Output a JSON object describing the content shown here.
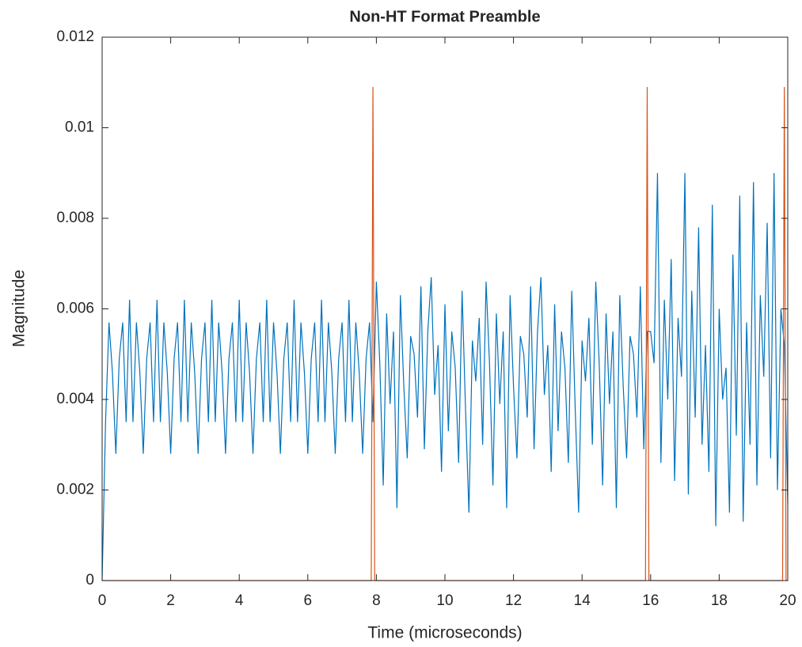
{
  "chart_data": {
    "type": "line",
    "title": "Non-HT Format Preamble",
    "x_label": "Time (microseconds)",
    "y_label": "Magnitude",
    "xlim": [
      0,
      20
    ],
    "ylim": [
      0,
      0.012
    ],
    "xticks": [
      0,
      2,
      4,
      6,
      8,
      10,
      12,
      14,
      16,
      18,
      20
    ],
    "yticks": [
      0,
      0.002,
      0.004,
      0.006,
      0.008,
      0.01,
      0.012
    ],
    "grid": false,
    "series": [
      {
        "color": "#0072BD",
        "x": [
          0,
          0.1,
          0.2,
          0.3,
          0.4,
          0.5,
          0.6,
          0.7,
          0.8,
          0.9,
          1,
          1.1,
          1.2,
          1.3,
          1.4,
          1.5,
          1.6,
          1.7,
          1.8,
          1.9,
          2,
          2.1,
          2.2,
          2.3,
          2.4,
          2.5,
          2.6,
          2.7,
          2.8,
          2.9,
          3,
          3.1,
          3.2,
          3.3,
          3.4,
          3.5,
          3.6,
          3.7,
          3.8,
          3.9,
          4,
          4.1,
          4.2,
          4.3,
          4.4,
          4.5,
          4.6,
          4.7,
          4.8,
          4.9,
          5,
          5.1,
          5.2,
          5.3,
          5.4,
          5.5,
          5.6,
          5.7,
          5.8,
          5.9,
          6,
          6.1,
          6.2,
          6.3,
          6.4,
          6.5,
          6.6,
          6.7,
          6.8,
          6.9,
          7,
          7.1,
          7.2,
          7.3,
          7.4,
          7.5,
          7.6,
          7.7,
          7.8,
          7.9,
          8,
          8.1,
          8.2,
          8.3,
          8.4,
          8.5,
          8.6,
          8.7,
          8.8,
          8.9,
          9,
          9.1,
          9.2,
          9.3,
          9.4,
          9.5,
          9.6,
          9.7,
          9.8,
          9.9,
          10,
          10.1,
          10.2,
          10.3,
          10.4,
          10.5,
          10.6,
          10.7,
          10.8,
          10.9,
          11,
          11.1,
          11.2,
          11.3,
          11.4,
          11.5,
          11.6,
          11.7,
          11.8,
          11.9,
          12,
          12.1,
          12.2,
          12.3,
          12.4,
          12.5,
          12.6,
          12.7,
          12.8,
          12.9,
          13,
          13.1,
          13.2,
          13.3,
          13.4,
          13.5,
          13.6,
          13.7,
          13.8,
          13.9,
          14,
          14.1,
          14.2,
          14.3,
          14.4,
          14.5,
          14.6,
          14.7,
          14.8,
          14.9,
          15,
          15.1,
          15.2,
          15.3,
          15.4,
          15.5,
          15.6,
          15.7,
          15.8,
          15.9,
          16,
          16.1,
          16.2,
          16.3,
          16.4,
          16.5,
          16.6,
          16.7,
          16.8,
          16.9,
          17,
          17.1,
          17.2,
          17.3,
          17.4,
          17.5,
          17.6,
          17.7,
          17.8,
          17.9,
          18,
          18.1,
          18.2,
          18.3,
          18.4,
          18.5,
          18.6,
          18.7,
          18.8,
          18.9,
          19,
          19.1,
          19.2,
          19.3,
          19.4,
          19.5,
          19.6,
          19.7,
          19.8,
          19.9,
          20
        ],
        "values": [
          0,
          0.0035,
          0.0057,
          0.0046,
          0.0028,
          0.0049,
          0.0057,
          0.0035,
          0.0062,
          0.0035,
          0.0057,
          0.0046,
          0.0028,
          0.0049,
          0.0057,
          0.0035,
          0.0062,
          0.0035,
          0.0057,
          0.0046,
          0.0028,
          0.0049,
          0.0057,
          0.0035,
          0.0062,
          0.0035,
          0.0057,
          0.0046,
          0.0028,
          0.0049,
          0.0057,
          0.0035,
          0.0062,
          0.0035,
          0.0057,
          0.0046,
          0.0028,
          0.0049,
          0.0057,
          0.0035,
          0.0062,
          0.0035,
          0.0057,
          0.0046,
          0.0028,
          0.0049,
          0.0057,
          0.0035,
          0.0062,
          0.0035,
          0.0057,
          0.0046,
          0.0028,
          0.0049,
          0.0057,
          0.0035,
          0.0062,
          0.0035,
          0.0057,
          0.0046,
          0.0028,
          0.0049,
          0.0057,
          0.0035,
          0.0062,
          0.0035,
          0.0057,
          0.0046,
          0.0028,
          0.0049,
          0.0057,
          0.0035,
          0.0062,
          0.0035,
          0.0057,
          0.0046,
          0.0028,
          0.0049,
          0.0057,
          0.0035,
          0.0066,
          0.0048,
          0.0021,
          0.0059,
          0.0039,
          0.0055,
          0.0016,
          0.0063,
          0.0043,
          0.0027,
          0.0054,
          0.005,
          0.0036,
          0.0065,
          0.0029,
          0.0055,
          0.0067,
          0.0041,
          0.0052,
          0.0024,
          0.0061,
          0.0033,
          0.0055,
          0.0047,
          0.0026,
          0.0064,
          0.0038,
          0.0015,
          0.0053,
          0.0044,
          0.0058,
          0.003,
          0.0066,
          0.0048,
          0.0021,
          0.0059,
          0.0039,
          0.0055,
          0.0016,
          0.0063,
          0.0043,
          0.0027,
          0.0054,
          0.005,
          0.0036,
          0.0065,
          0.0029,
          0.0055,
          0.0067,
          0.0041,
          0.0052,
          0.0024,
          0.0061,
          0.0033,
          0.0055,
          0.0047,
          0.0026,
          0.0064,
          0.0038,
          0.0015,
          0.0053,
          0.0044,
          0.0058,
          0.003,
          0.0066,
          0.0048,
          0.0021,
          0.0059,
          0.0039,
          0.0055,
          0.0016,
          0.0063,
          0.0043,
          0.0027,
          0.0054,
          0.005,
          0.0036,
          0.0065,
          0.0029,
          0.0055,
          0.0055,
          0.0048,
          0.009,
          0.0026,
          0.0062,
          0.004,
          0.0071,
          0.0022,
          0.0058,
          0.0045,
          0.009,
          0.0019,
          0.0064,
          0.0036,
          0.0078,
          0.003,
          0.0052,
          0.0024,
          0.0083,
          0.0012,
          0.006,
          0.004,
          0.0047,
          0.0015,
          0.0072,
          0.0032,
          0.0085,
          0.0013,
          0.0057,
          0.003,
          0.0088,
          0.0021,
          0.0063,
          0.0045,
          0.0079,
          0.0027,
          0.009,
          0.002,
          0.006,
          0.0052,
          0.0017
        ]
      },
      {
        "color": "#D95319",
        "x": [
          0,
          7.85,
          7.9,
          7.95,
          15.85,
          15.9,
          15.95,
          19.85,
          19.9,
          19.95,
          20
        ],
        "values": [
          0,
          0,
          0.0109,
          0,
          0,
          0.0109,
          0,
          0,
          0.0109,
          0,
          0
        ]
      }
    ]
  }
}
